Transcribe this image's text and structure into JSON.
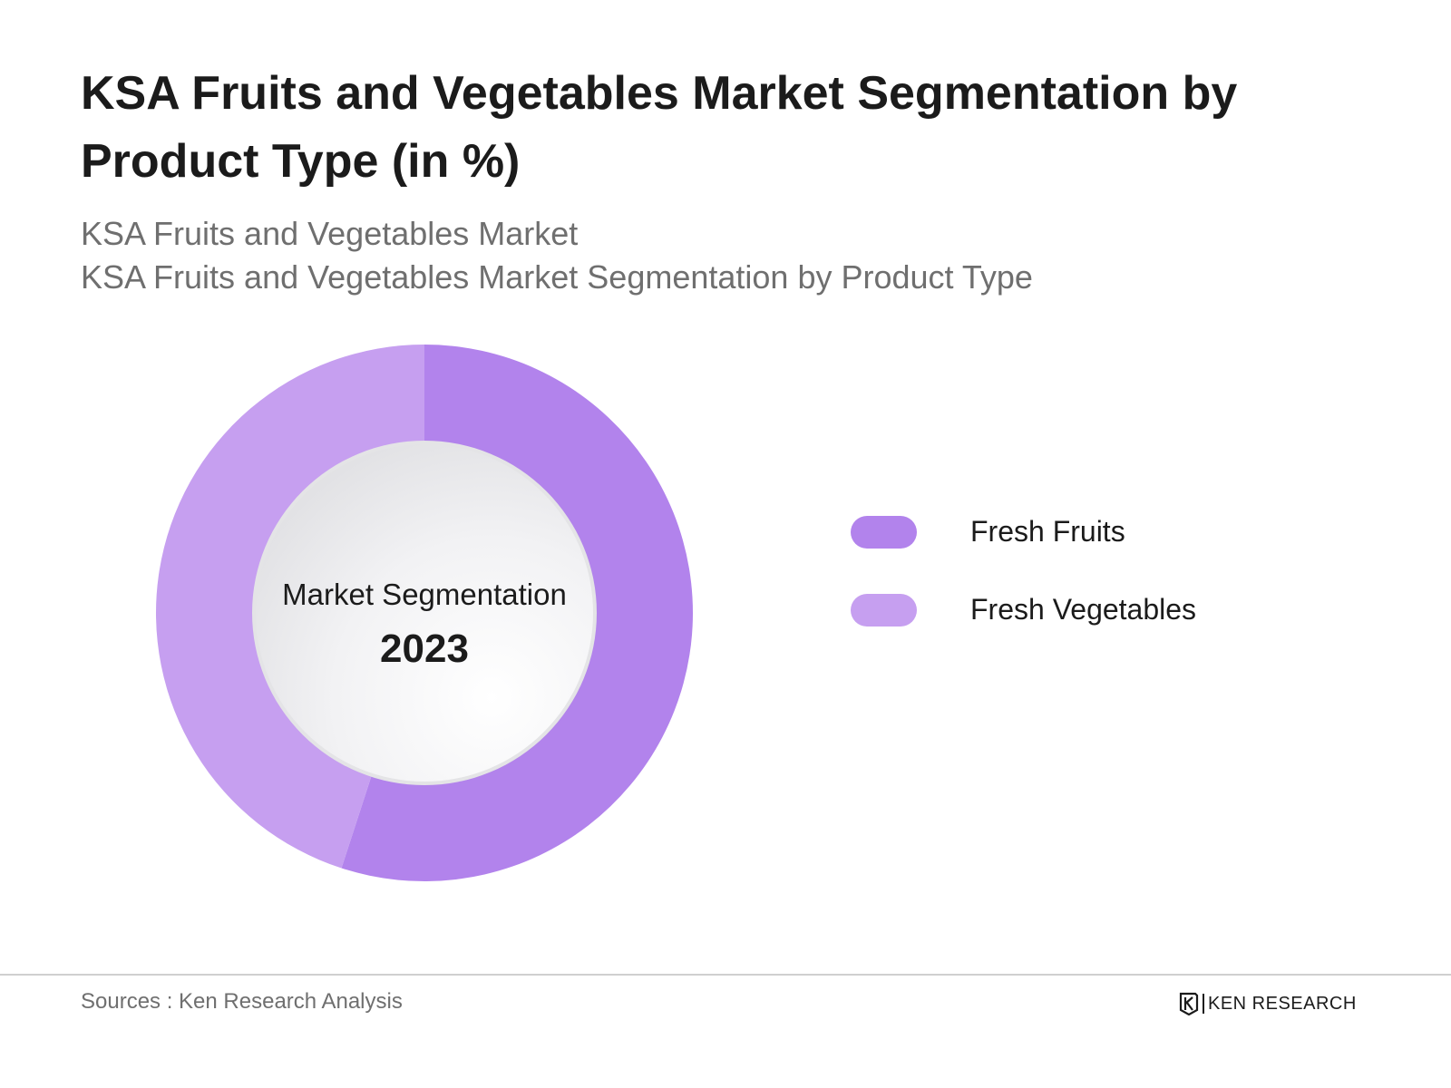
{
  "header": {
    "title": "KSA Fruits and Vegetables Market Segmentation by Product Type (in %)",
    "subtitle_1": "KSA Fruits and Vegetables Market",
    "subtitle_2": "KSA Fruits and Vegetables Market Segmentation by Product Type"
  },
  "center": {
    "label": "Market Segmentation",
    "year": "2023"
  },
  "footer": {
    "source": "Sources : Ken Research Analysis",
    "brand": "KEN RESEARCH"
  },
  "chart_data": {
    "type": "pie",
    "donut": true,
    "title": "KSA Fruits and Vegetables Market Segmentation by Product Type (in %)",
    "categories": [
      "Fresh Fruits",
      "Fresh Vegetables"
    ],
    "values": [
      55,
      45
    ],
    "colors": [
      "#b283ec",
      "#c69ff0"
    ],
    "legend_position": "right",
    "start_angle_deg": 0,
    "direction": "clockwise"
  }
}
